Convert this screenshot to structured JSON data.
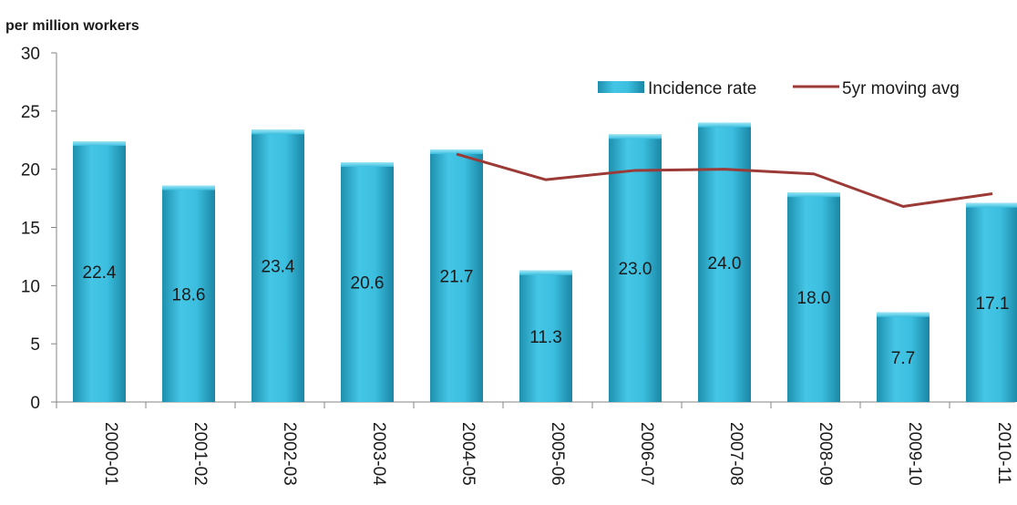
{
  "chart_data": {
    "type": "bar",
    "ylabel": "per million workers",
    "ylim": [
      0,
      30
    ],
    "yticks": [
      0,
      5,
      10,
      15,
      20,
      25,
      30
    ],
    "categories": [
      "2000-01",
      "2001-02",
      "2002-03",
      "2003-04",
      "2004-05",
      "2005-06",
      "2006-07",
      "2007-08",
      "2008-09",
      "2009-10",
      "2010-11"
    ],
    "series": [
      {
        "name": "Incidence rate",
        "type": "bar",
        "color": "#31b9d9",
        "values": [
          22.4,
          18.6,
          23.4,
          20.6,
          21.7,
          11.3,
          23.0,
          24.0,
          18.0,
          7.7,
          17.1
        ],
        "labels": [
          "22.4",
          "18.6",
          "23.4",
          "20.6",
          "21.7",
          "11.3",
          "23.0",
          "24.0",
          "18.0",
          "7.7",
          "17.1"
        ]
      },
      {
        "name": "5yr moving avg",
        "type": "line",
        "color": "#9b3a36",
        "values": [
          null,
          null,
          null,
          null,
          21.3,
          19.1,
          19.9,
          20.0,
          19.6,
          16.8,
          17.9
        ]
      }
    ],
    "legend_position": "top-right",
    "grid": false
  }
}
